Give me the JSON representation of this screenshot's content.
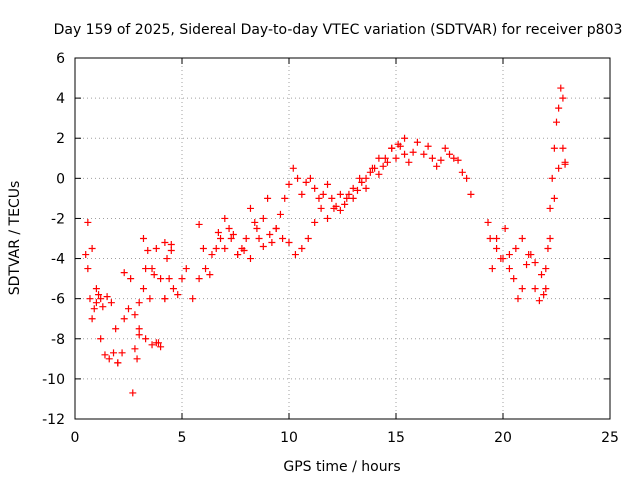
{
  "chart_data": {
    "type": "scatter",
    "title": "Day 159 of 2025, Sidereal Day-to-day VTEC variation (SDTVAR) for receiver p803",
    "xlabel": "GPS time / hours",
    "ylabel": "SDTVAR / TECUs",
    "xlim": [
      0,
      25
    ],
    "ylim": [
      -12,
      6
    ],
    "xticks": [
      "0",
      "5",
      "10",
      "15",
      "20",
      "25"
    ],
    "yticks": [
      "-12",
      "-10",
      "-8",
      "-6",
      "-4",
      "-2",
      "0",
      "2",
      "4",
      "6"
    ],
    "grid": true,
    "marker": "plus",
    "color": "#ff0000",
    "series": [
      {
        "name": "SDTVAR",
        "x": [
          0.5,
          0.6,
          0.7,
          0.8,
          0.9,
          1.0,
          1.1,
          1.2,
          1.3,
          1.5,
          1.7,
          1.9,
          2.0,
          2.2,
          2.3,
          2.5,
          2.7,
          2.9,
          3.0,
          3.2,
          3.3,
          3.5,
          3.7,
          3.8,
          4.0,
          4.2,
          4.3,
          4.5,
          0.6,
          0.8,
          1.0,
          1.2,
          1.4,
          1.6,
          1.8,
          2.0,
          2.3,
          2.6,
          2.8,
          3.0,
          3.2,
          3.4,
          3.6,
          3.8,
          4.0,
          4.2,
          4.4,
          4.6,
          4.8,
          5.0,
          5.2,
          5.5,
          5.8,
          6.0,
          6.3,
          6.6,
          6.8,
          7.0,
          7.2,
          7.4,
          7.6,
          7.8,
          8.0,
          8.2,
          8.4,
          8.6,
          8.8,
          9.0,
          9.2,
          9.4,
          9.6,
          9.8,
          10.0,
          10.2,
          10.4,
          10.6,
          10.8,
          11.0,
          11.2,
          11.4,
          11.6,
          11.8,
          12.0,
          12.2,
          12.4,
          12.6,
          12.8,
          13.0,
          13.2,
          13.4,
          13.6,
          13.8,
          14.0,
          14.2,
          14.4,
          14.6,
          14.8,
          15.0,
          15.2,
          15.4,
          15.6,
          15.8,
          16.0,
          16.3,
          16.5,
          16.7,
          16.9,
          17.1,
          17.3,
          17.5,
          17.7,
          17.9,
          18.1,
          18.3,
          18.5,
          7.0,
          7.3,
          7.6,
          7.9,
          8.2,
          8.5,
          8.8,
          9.1,
          9.4,
          9.7,
          10.0,
          10.3,
          10.6,
          10.9,
          11.2,
          11.5,
          11.8,
          12.1,
          12.4,
          12.7,
          13.0,
          13.3,
          13.6,
          13.9,
          14.2,
          14.5,
          14.8,
          15.1,
          15.4,
          2.8,
          3.0,
          3.3,
          3.6,
          3.9,
          4.2,
          4.5,
          5.8,
          6.1,
          6.4,
          6.7,
          19.3,
          19.5,
          19.7,
          19.9,
          20.1,
          20.3,
          20.5,
          20.7,
          20.9,
          21.1,
          21.3,
          21.5,
          21.7,
          21.9,
          22.0,
          22.1,
          22.2,
          22.3,
          22.4,
          22.5,
          22.6,
          22.7,
          22.8,
          22.9,
          19.4,
          19.7,
          20.0,
          20.3,
          20.6,
          20.9,
          21.2,
          21.5,
          21.8,
          22.0,
          22.2,
          22.4,
          22.6,
          22.8,
          22.9
        ],
        "y": [
          -3.8,
          -4.5,
          -6.0,
          -7.0,
          -6.5,
          -6.2,
          -5.8,
          -6.0,
          -6.4,
          -5.9,
          -6.2,
          -7.5,
          -9.2,
          -8.7,
          -7.0,
          -6.5,
          -10.7,
          -9.0,
          -7.8,
          -5.5,
          -4.5,
          -6.0,
          -4.8,
          -3.5,
          -5.0,
          -6.0,
          -4.0,
          -3.3,
          -2.2,
          -3.5,
          -5.5,
          -8.0,
          -8.8,
          -9.0,
          -8.7,
          -9.2,
          -4.7,
          -5.0,
          -6.8,
          -6.2,
          -3.0,
          -3.6,
          -4.5,
          -8.2,
          -8.4,
          -6.0,
          -5.0,
          -5.5,
          -5.8,
          -5.0,
          -4.5,
          -6.0,
          -2.3,
          -3.5,
          -4.8,
          -3.5,
          -3.0,
          -2.0,
          -2.5,
          -2.8,
          -3.8,
          -3.5,
          -3.0,
          -1.5,
          -2.2,
          -3.0,
          -2.0,
          -1.0,
          -3.2,
          -2.5,
          -1.8,
          -1.0,
          -0.3,
          0.5,
          0.0,
          -0.8,
          -0.2,
          0.0,
          -0.5,
          -1.0,
          -0.8,
          -0.3,
          -1.0,
          -1.4,
          -1.6,
          -1.3,
          -0.8,
          -1.0,
          -0.6,
          -0.2,
          0.0,
          0.3,
          0.5,
          1.0,
          0.6,
          0.8,
          1.5,
          1.0,
          1.6,
          1.2,
          0.8,
          1.3,
          1.8,
          1.2,
          1.6,
          1.0,
          0.6,
          0.9,
          1.5,
          1.2,
          1.0,
          0.9,
          0.3,
          0.0,
          -0.8,
          -3.5,
          -3.0,
          -3.8,
          -3.6,
          -4.0,
          -2.5,
          -3.4,
          -2.8,
          -2.5,
          -3.0,
          -3.2,
          -3.8,
          -3.5,
          -3.0,
          -2.2,
          -1.5,
          -2.0,
          -1.5,
          -0.8,
          -1.0,
          -0.5,
          0.0,
          -0.5,
          0.5,
          0.2,
          1.0,
          1.5,
          1.7,
          2.0,
          -8.5,
          -7.5,
          -8.0,
          -8.3,
          -8.2,
          -3.2,
          -3.6,
          -5.0,
          -4.5,
          -3.8,
          -2.7,
          -2.2,
          -4.5,
          -3.0,
          -4.0,
          -2.5,
          -3.8,
          -5.0,
          -6.0,
          -5.5,
          -4.3,
          -3.8,
          -5.5,
          -6.1,
          -5.8,
          -5.5,
          -3.5,
          -1.5,
          0.0,
          1.5,
          2.8,
          3.5,
          4.5,
          4.0,
          0.7,
          -3.0,
          -3.5,
          -4.0,
          -4.5,
          -3.5,
          -3.0,
          -3.8,
          -4.2,
          -4.8,
          -4.5,
          -3.0,
          -1.0,
          0.5,
          1.5,
          0.8
        ]
      }
    ]
  }
}
